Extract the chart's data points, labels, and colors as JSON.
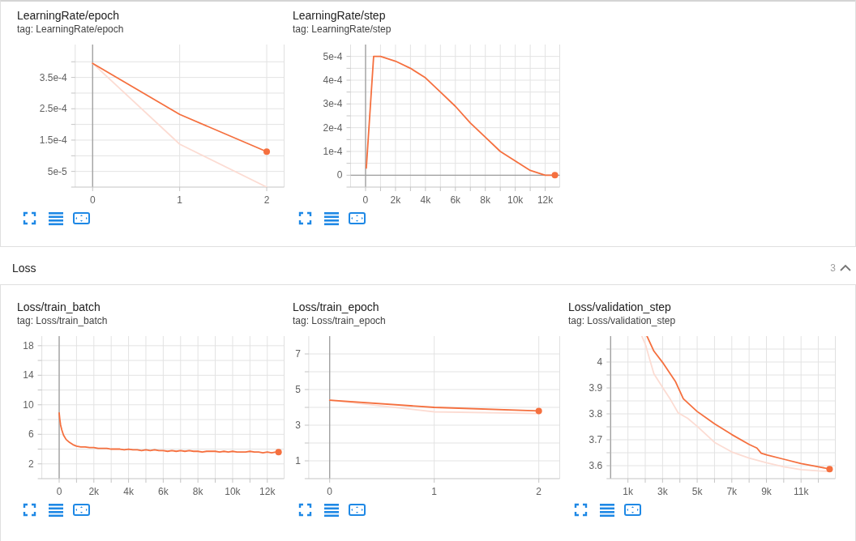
{
  "chart_data": [
    {
      "type": "line",
      "title": "LearningRate/epoch",
      "subtitle": "tag: LearningRate/epoch",
      "x": [
        0,
        1,
        2
      ],
      "series": [
        {
          "color": "#fcdcd3",
          "values": [
            0.000395,
            0.000137,
            0
          ]
        },
        {
          "color": "#f5703f",
          "values": [
            0.000395,
            0.000232,
            0.000113
          ]
        },
        {
          "type": "scatter",
          "color": "#f5703f",
          "x": [
            2
          ],
          "values": [
            0.000113
          ]
        }
      ],
      "xlim": [
        -0.2,
        2.2
      ],
      "xticks": [
        0,
        1,
        2
      ],
      "ylim": [
        0,
        0.000455
      ],
      "yticks": [
        {
          "value": 5e-05,
          "label": "5e-5"
        },
        {
          "value": 0.0001,
          "label": null
        },
        {
          "value": 0.00015,
          "label": "1.5e-4"
        },
        {
          "value": 0.0002,
          "label": null
        },
        {
          "value": 0.00025,
          "label": "2.5e-4"
        },
        {
          "value": 0.0003,
          "label": null
        },
        {
          "value": 0.00035,
          "label": "3.5e-4"
        },
        {
          "value": 0.0004,
          "label": null
        }
      ],
      "grid": true
    },
    {
      "type": "line",
      "title": "LearningRate/step",
      "subtitle": "tag: LearningRate/step",
      "x": [
        50,
        540,
        1000,
        2000,
        3000,
        4000,
        5000,
        6000,
        7000,
        8000,
        9000,
        10000,
        11000,
        12000,
        12650
      ],
      "series": [
        {
          "color": "#f5703f",
          "values": [
            3e-05,
            0.0005,
            0.0005,
            0.00048,
            0.00045,
            0.00041,
            0.00035,
            0.00029,
            0.00022,
            0.00016,
            0.0001,
            6e-05,
            2e-05,
            0,
            0
          ]
        },
        {
          "type": "scatter",
          "color": "#f5703f",
          "x": [
            12650
          ],
          "values": [
            0
          ]
        }
      ],
      "xlim": [
        -1000,
        12970
      ],
      "xticks": [
        0,
        {
          "value": 1000,
          "label": null
        },
        {
          "value": 2000,
          "label": "2k"
        },
        {
          "value": 3000,
          "label": null
        },
        {
          "value": 4000,
          "label": "4k"
        },
        {
          "value": 5000,
          "label": null
        },
        {
          "value": 6000,
          "label": "6k"
        },
        {
          "value": 7000,
          "label": null
        },
        {
          "value": 8000,
          "label": "8k"
        },
        {
          "value": 9000,
          "label": null
        },
        {
          "value": 10000,
          "label": "10k"
        },
        {
          "value": 11000,
          "label": null
        },
        {
          "value": 12000,
          "label": "12k"
        }
      ],
      "ylim": [
        -5e-05,
        0.00055
      ],
      "yticks": [
        0,
        {
          "value": 5e-05,
          "label": null
        },
        {
          "value": 0.0001,
          "label": "1e-4"
        },
        {
          "value": 0.00015,
          "label": null
        },
        {
          "value": 0.0002,
          "label": "2e-4"
        },
        {
          "value": 0.00025,
          "label": null
        },
        {
          "value": 0.0003,
          "label": "3e-4"
        },
        {
          "value": 0.00035,
          "label": null
        },
        {
          "value": 0.0004,
          "label": "4e-4"
        },
        {
          "value": 0.00045,
          "label": null
        },
        {
          "value": 0.0005,
          "label": "5e-4"
        }
      ],
      "grid": true
    },
    {
      "type": "other",
      "title": "Loss",
      "annotations": [
        "3"
      ]
    },
    {
      "type": "line",
      "title": "Loss/train_batch",
      "subtitle": "tag: Loss/train_batch",
      "x": [
        0,
        40,
        80,
        150,
        250,
        400,
        600,
        800,
        1000,
        1250,
        1500,
        1750,
        2000,
        2250,
        2500,
        2750,
        3000,
        3250,
        3500,
        3750,
        4000,
        4250,
        4500,
        4750,
        5000,
        5250,
        5500,
        5750,
        6000,
        6250,
        6500,
        6750,
        7000,
        7250,
        7500,
        7750,
        8000,
        8250,
        8500,
        8750,
        9000,
        9250,
        9500,
        9750,
        10000,
        10250,
        10500,
        10750,
        11000,
        11250,
        11500,
        11750,
        12000,
        12250,
        12500,
        12650
      ],
      "series": [
        {
          "color": "#f5703f",
          "values": [
            8.9,
            8.0,
            7.3,
            6.6,
            5.9,
            5.3,
            4.9,
            4.6,
            4.4,
            4.3,
            4.3,
            4.2,
            4.2,
            4.1,
            4.1,
            4.1,
            4.0,
            4.0,
            4.0,
            3.9,
            4.0,
            3.9,
            3.9,
            3.8,
            3.9,
            3.8,
            3.9,
            3.8,
            3.8,
            3.7,
            3.8,
            3.7,
            3.8,
            3.7,
            3.8,
            3.7,
            3.7,
            3.6,
            3.7,
            3.7,
            3.7,
            3.6,
            3.7,
            3.6,
            3.7,
            3.6,
            3.6,
            3.6,
            3.7,
            3.6,
            3.6,
            3.5,
            3.6,
            3.5,
            3.6,
            3.6
          ]
        },
        {
          "type": "scatter",
          "color": "#f5703f",
          "x": [
            12650
          ],
          "values": [
            3.6
          ]
        }
      ],
      "xlim": [
        -1000,
        12970
      ],
      "xticks": [
        0,
        {
          "value": 1000,
          "label": null
        },
        {
          "value": 2000,
          "label": "2k"
        },
        {
          "value": 3000,
          "label": null
        },
        {
          "value": 4000,
          "label": "4k"
        },
        {
          "value": 5000,
          "label": null
        },
        {
          "value": 6000,
          "label": "6k"
        },
        {
          "value": 7000,
          "label": null
        },
        {
          "value": 8000,
          "label": "8k"
        },
        {
          "value": 9000,
          "label": null
        },
        {
          "value": 10000,
          "label": "10k"
        },
        {
          "value": 11000,
          "label": null
        },
        {
          "value": 12000,
          "label": "12k"
        }
      ],
      "ylim": [
        0,
        19.3
      ],
      "yticks": [
        2,
        {
          "value": 4,
          "label": null
        },
        6,
        {
          "value": 8,
          "label": null
        },
        10,
        {
          "value": 12,
          "label": null
        },
        14,
        {
          "value": 16,
          "label": null
        },
        18
      ],
      "grid": true
    },
    {
      "type": "line",
      "title": "Loss/train_epoch",
      "subtitle": "tag: Loss/train_epoch",
      "x": [
        0,
        1,
        2
      ],
      "series": [
        {
          "color": "#fcdcd3",
          "values": [
            4.4,
            3.75,
            3.65
          ]
        },
        {
          "color": "#f5703f",
          "values": [
            4.4,
            4.0,
            3.8
          ]
        },
        {
          "type": "scatter",
          "color": "#f5703f",
          "x": [
            2
          ],
          "values": [
            3.8
          ]
        }
      ],
      "xlim": [
        -0.2,
        2.2
      ],
      "xticks": [
        0,
        1,
        2
      ],
      "ylim": [
        0,
        8
      ],
      "yticks": [
        1,
        {
          "value": 2,
          "label": null
        },
        3,
        {
          "value": 4,
          "label": null
        },
        5,
        {
          "value": 6,
          "label": null
        },
        7
      ],
      "grid": true
    },
    {
      "type": "line",
      "title": "Loss/validation_step",
      "subtitle": "tag: Loss/validation_step",
      "series": [
        {
          "color": "#fcdcd3",
          "x": [
            1800,
            2030,
            2250,
            2500,
            3050,
            3450,
            3900,
            4450,
            5000,
            6000,
            7000,
            8000,
            9000,
            10000,
            11000,
            12000,
            12650
          ],
          "values": [
            4.1,
            4.064,
            4.012,
            3.955,
            3.897,
            3.856,
            3.804,
            3.783,
            3.752,
            3.69,
            3.653,
            3.629,
            3.611,
            3.596,
            3.585,
            3.58,
            3.578
          ]
        },
        {
          "color": "#f5703f",
          "x": [
            2100,
            2500,
            3050,
            3750,
            4200,
            5000,
            6000,
            7000,
            8000,
            8450,
            8700,
            9050,
            10000,
            11000,
            12000,
            12650
          ],
          "values": [
            4.1,
            4.042,
            3.994,
            3.924,
            3.858,
            3.809,
            3.762,
            3.72,
            3.682,
            3.668,
            3.648,
            3.641,
            3.625,
            3.608,
            3.596,
            3.587
          ]
        },
        {
          "type": "scatter",
          "color": "#f5703f",
          "x": [
            12650
          ],
          "values": [
            3.587
          ]
        }
      ],
      "xlim": [
        0,
        12980
      ],
      "xticks": [
        {
          "value": 1000,
          "label": "1k"
        },
        {
          "value": 2000,
          "label": null
        },
        {
          "value": 3000,
          "label": "3k"
        },
        {
          "value": 4000,
          "label": null
        },
        {
          "value": 5000,
          "label": "5k"
        },
        {
          "value": 6000,
          "label": null
        },
        {
          "value": 7000,
          "label": "7k"
        },
        {
          "value": 8000,
          "label": null
        },
        {
          "value": 9000,
          "label": "9k"
        },
        {
          "value": 10000,
          "label": null
        },
        {
          "value": 11000,
          "label": "11k"
        },
        {
          "value": 12000,
          "label": null
        }
      ],
      "ylim": [
        3.55,
        4.1
      ],
      "yticks": [
        3.6,
        {
          "value": 3.65,
          "label": null
        },
        3.7,
        {
          "value": 3.75,
          "label": null
        },
        3.8,
        {
          "value": 3.85,
          "label": null
        },
        3.9,
        {
          "value": 3.95,
          "label": null
        },
        4,
        {
          "value": 4.05,
          "label": null
        }
      ],
      "grid": true
    }
  ]
}
